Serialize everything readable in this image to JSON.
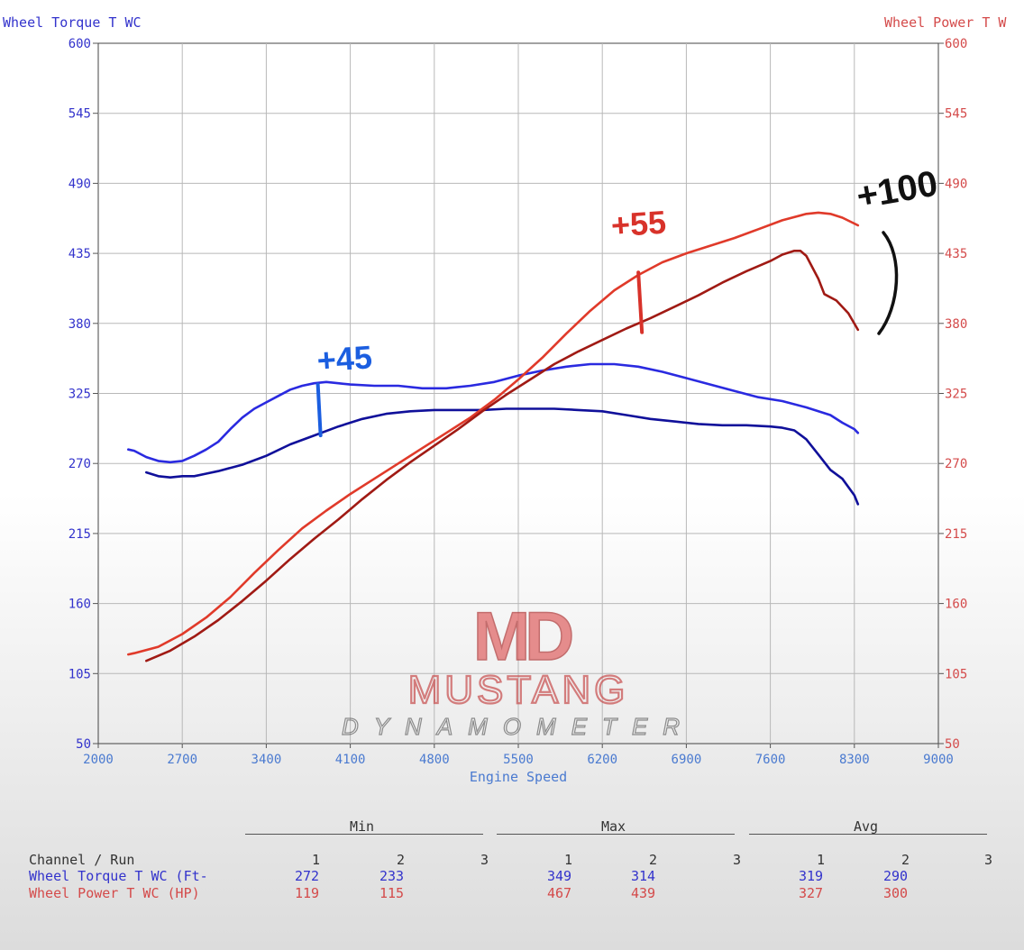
{
  "chart_data": {
    "type": "line",
    "left_axis_title": "Wheel Torque T WC",
    "right_axis_title": "Wheel Power T W",
    "xlabel": "Engine Speed",
    "xlim": [
      2000,
      9000
    ],
    "ylim": [
      50,
      600
    ],
    "x_ticks": [
      2000,
      2700,
      3400,
      4100,
      4800,
      5500,
      6200,
      6900,
      7600,
      8300,
      9000
    ],
    "y_ticks": [
      50,
      105,
      160,
      215,
      270,
      325,
      380,
      435,
      490,
      545,
      600
    ],
    "grid": true,
    "series": [
      {
        "name": "Wheel Torque T WC (Ft-",
        "run": 1,
        "color": "#2a2ae0",
        "points": [
          [
            2250,
            281
          ],
          [
            2300,
            280
          ],
          [
            2400,
            275
          ],
          [
            2500,
            272
          ],
          [
            2600,
            271
          ],
          [
            2700,
            272
          ],
          [
            2800,
            276
          ],
          [
            2900,
            281
          ],
          [
            3000,
            287
          ],
          [
            3100,
            297
          ],
          [
            3200,
            306
          ],
          [
            3300,
            313
          ],
          [
            3400,
            318
          ],
          [
            3500,
            323
          ],
          [
            3600,
            328
          ],
          [
            3700,
            331
          ],
          [
            3800,
            333
          ],
          [
            3900,
            334
          ],
          [
            4000,
            333
          ],
          [
            4100,
            332
          ],
          [
            4300,
            331
          ],
          [
            4500,
            331
          ],
          [
            4700,
            329
          ],
          [
            4900,
            329
          ],
          [
            5100,
            331
          ],
          [
            5300,
            334
          ],
          [
            5500,
            339
          ],
          [
            5700,
            343
          ],
          [
            5900,
            346
          ],
          [
            6100,
            348
          ],
          [
            6300,
            348
          ],
          [
            6500,
            346
          ],
          [
            6700,
            342
          ],
          [
            6900,
            337
          ],
          [
            7100,
            332
          ],
          [
            7300,
            327
          ],
          [
            7500,
            322
          ],
          [
            7700,
            319
          ],
          [
            7900,
            314
          ],
          [
            8100,
            308
          ],
          [
            8200,
            302
          ],
          [
            8300,
            297
          ],
          [
            8330,
            294
          ]
        ]
      },
      {
        "name": "Wheel Torque T WC (Ft-",
        "run": 2,
        "color": "#10109a",
        "points": [
          [
            2400,
            263
          ],
          [
            2500,
            260
          ],
          [
            2600,
            259
          ],
          [
            2700,
            260
          ],
          [
            2800,
            260
          ],
          [
            2900,
            262
          ],
          [
            3000,
            264
          ],
          [
            3200,
            269
          ],
          [
            3400,
            276
          ],
          [
            3600,
            285
          ],
          [
            3800,
            292
          ],
          [
            4000,
            299
          ],
          [
            4200,
            305
          ],
          [
            4400,
            309
          ],
          [
            4600,
            311
          ],
          [
            4800,
            312
          ],
          [
            5000,
            312
          ],
          [
            5200,
            312
          ],
          [
            5400,
            313
          ],
          [
            5600,
            313
          ],
          [
            5800,
            313
          ],
          [
            6000,
            312
          ],
          [
            6200,
            311
          ],
          [
            6400,
            308
          ],
          [
            6600,
            305
          ],
          [
            6800,
            303
          ],
          [
            7000,
            301
          ],
          [
            7200,
            300
          ],
          [
            7400,
            300
          ],
          [
            7600,
            299
          ],
          [
            7700,
            298
          ],
          [
            7800,
            296
          ],
          [
            7900,
            289
          ],
          [
            8000,
            277
          ],
          [
            8100,
            265
          ],
          [
            8200,
            258
          ],
          [
            8300,
            245
          ],
          [
            8330,
            238
          ]
        ]
      },
      {
        "name": "Wheel Power T WC (HP)",
        "run": 1,
        "color": "#e03a2a",
        "points": [
          [
            2250,
            120
          ],
          [
            2300,
            121
          ],
          [
            2500,
            126
          ],
          [
            2700,
            136
          ],
          [
            2900,
            149
          ],
          [
            3100,
            165
          ],
          [
            3300,
            184
          ],
          [
            3500,
            202
          ],
          [
            3700,
            219
          ],
          [
            3900,
            233
          ],
          [
            4100,
            246
          ],
          [
            4300,
            258
          ],
          [
            4500,
            270
          ],
          [
            4700,
            282
          ],
          [
            4900,
            294
          ],
          [
            5100,
            306
          ],
          [
            5300,
            320
          ],
          [
            5500,
            336
          ],
          [
            5700,
            353
          ],
          [
            5900,
            372
          ],
          [
            6100,
            390
          ],
          [
            6300,
            406
          ],
          [
            6500,
            418
          ],
          [
            6700,
            428
          ],
          [
            6900,
            435
          ],
          [
            7100,
            441
          ],
          [
            7300,
            447
          ],
          [
            7500,
            454
          ],
          [
            7700,
            461
          ],
          [
            7900,
            466
          ],
          [
            8000,
            467
          ],
          [
            8100,
            466
          ],
          [
            8200,
            463
          ],
          [
            8330,
            457
          ]
        ]
      },
      {
        "name": "Wheel Power T WC (HP)",
        "run": 2,
        "color": "#a01a14",
        "points": [
          [
            2400,
            115
          ],
          [
            2600,
            123
          ],
          [
            2800,
            134
          ],
          [
            3000,
            147
          ],
          [
            3200,
            162
          ],
          [
            3400,
            178
          ],
          [
            3600,
            195
          ],
          [
            3800,
            211
          ],
          [
            4000,
            226
          ],
          [
            4200,
            242
          ],
          [
            4400,
            257
          ],
          [
            4600,
            271
          ],
          [
            4800,
            284
          ],
          [
            5000,
            297
          ],
          [
            5200,
            311
          ],
          [
            5400,
            324
          ],
          [
            5600,
            336
          ],
          [
            5800,
            348
          ],
          [
            6000,
            358
          ],
          [
            6200,
            367
          ],
          [
            6400,
            376
          ],
          [
            6600,
            384
          ],
          [
            6800,
            393
          ],
          [
            7000,
            402
          ],
          [
            7200,
            412
          ],
          [
            7400,
            421
          ],
          [
            7600,
            429
          ],
          [
            7700,
            434
          ],
          [
            7800,
            437
          ],
          [
            7850,
            437
          ],
          [
            7900,
            433
          ],
          [
            8000,
            415
          ],
          [
            8050,
            403
          ],
          [
            8150,
            398
          ],
          [
            8250,
            388
          ],
          [
            8330,
            375
          ]
        ]
      }
    ],
    "annotations": [
      {
        "text": "+45",
        "color": "#1b5ee0",
        "x": 3830,
        "y": 342,
        "marker_x": 3830,
        "marker_y1": 332,
        "marker_y2": 292
      },
      {
        "text": "+55",
        "color": "#d8322a",
        "x": 6280,
        "y": 448,
        "marker_x": 6500,
        "marker_y1": 420,
        "marker_y2": 373
      },
      {
        "text": "+100",
        "color": "#111111",
        "x": 8340,
        "y": 470
      }
    ],
    "watermark": {
      "top": "MD",
      "name": "MUSTANG",
      "sub": "DYNAMOMETER"
    }
  },
  "table": {
    "groups": [
      "Min",
      "Max",
      "Avg"
    ],
    "run_labels": [
      "1",
      "2",
      "3"
    ],
    "channel_header": "Channel / Run",
    "rows": [
      {
        "label": "Wheel Torque T WC (Ft-",
        "min": [
          "272",
          "233",
          ""
        ],
        "max": [
          "349",
          "314",
          ""
        ],
        "avg": [
          "319",
          "290",
          ""
        ]
      },
      {
        "label": "Wheel Power T WC (HP)",
        "min": [
          "119",
          "115",
          ""
        ],
        "max": [
          "467",
          "439",
          ""
        ],
        "avg": [
          "327",
          "300",
          ""
        ]
      }
    ]
  }
}
